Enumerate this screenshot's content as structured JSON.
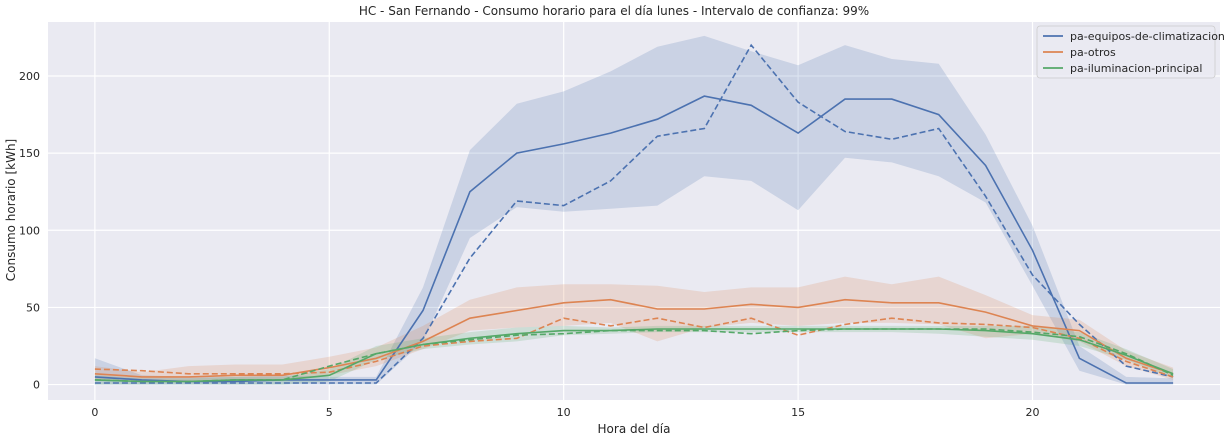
{
  "chart_data": {
    "type": "line",
    "title": "HC - San Fernando - Consumo horario para el día lunes - Intervalo de confianza: 99%",
    "xlabel": "Hora del día",
    "ylabel": "Consumo horario [kWh]",
    "xlim": [
      -1,
      24
    ],
    "ylim": [
      -10,
      235
    ],
    "xticks": [
      0,
      5,
      10,
      15,
      20
    ],
    "yticks": [
      0,
      50,
      100,
      150,
      200
    ],
    "grid": true,
    "legend_position": "top-right",
    "x": [
      0,
      1,
      2,
      3,
      4,
      5,
      6,
      7,
      8,
      9,
      10,
      11,
      12,
      13,
      14,
      15,
      16,
      17,
      18,
      19,
      20,
      21,
      22,
      23
    ],
    "series": [
      {
        "name": "pa-equipos-de-climatizacion",
        "color": "#4c72b0",
        "values": [
          5,
          3,
          2,
          2,
          3,
          3,
          3,
          48,
          125,
          150,
          156,
          163,
          172,
          187,
          181,
          163,
          185,
          185,
          175,
          142,
          87,
          17,
          1,
          1
        ],
        "median": [
          1,
          1,
          1,
          1,
          1,
          1,
          1,
          30,
          82,
          119,
          116,
          132,
          161,
          166,
          220,
          183,
          164,
          159,
          166,
          122,
          71,
          39,
          12,
          5
        ],
        "ci_lower": [
          0,
          0,
          0,
          0,
          0,
          0,
          0,
          28,
          95,
          115,
          112,
          114,
          116,
          135,
          132,
          113,
          147,
          144,
          135,
          118,
          64,
          9,
          0,
          0
        ],
        "ci_upper": [
          17,
          6,
          5,
          5,
          6,
          5,
          5,
          63,
          152,
          182,
          190,
          203,
          219,
          226,
          216,
          207,
          220,
          211,
          208,
          162,
          103,
          25,
          5,
          4
        ]
      },
      {
        "name": "pa-otros",
        "color": "#dd8452",
        "values": [
          7,
          5,
          5,
          6,
          6,
          11,
          17,
          28,
          43,
          48,
          53,
          55,
          49,
          49,
          52,
          50,
          55,
          53,
          53,
          47,
          38,
          35,
          17,
          7
        ],
        "median": [
          10,
          9,
          7,
          7,
          7,
          8,
          15,
          25,
          28,
          30,
          43,
          38,
          43,
          37,
          43,
          32,
          39,
          43,
          40,
          39,
          37,
          30,
          15,
          5
        ],
        "ci_lower": [
          3,
          2,
          2,
          3,
          3,
          6,
          12,
          23,
          35,
          37,
          38,
          40,
          28,
          37,
          40,
          38,
          40,
          40,
          39,
          30,
          33,
          28,
          12,
          3
        ],
        "ci_upper": [
          12,
          8,
          12,
          13,
          13,
          18,
          24,
          38,
          55,
          63,
          65,
          65,
          64,
          60,
          63,
          63,
          70,
          65,
          70,
          58,
          45,
          42,
          22,
          11
        ]
      },
      {
        "name": "pa-iluminacion-principal",
        "color": "#55a868",
        "values": [
          3,
          2,
          2,
          3,
          3,
          6,
          20,
          26,
          30,
          33,
          35,
          35,
          36,
          36,
          36,
          36,
          36,
          36,
          36,
          35,
          33,
          29,
          19,
          7
        ],
        "median": [
          3,
          2,
          2,
          3,
          3,
          12,
          20,
          26,
          29,
          32,
          33,
          35,
          35,
          35,
          33,
          35,
          36,
          36,
          36,
          36,
          34,
          31,
          20,
          6
        ],
        "ci_lower": [
          0,
          0,
          0,
          0,
          0,
          2,
          16,
          23,
          26,
          28,
          32,
          33,
          34,
          34,
          34,
          34,
          34,
          34,
          33,
          31,
          29,
          25,
          16,
          4
        ],
        "ci_upper": [
          6,
          4,
          4,
          5,
          5,
          10,
          25,
          30,
          34,
          37,
          38,
          37,
          38,
          38,
          38,
          38,
          38,
          38,
          38,
          38,
          38,
          34,
          23,
          10
        ]
      }
    ]
  }
}
